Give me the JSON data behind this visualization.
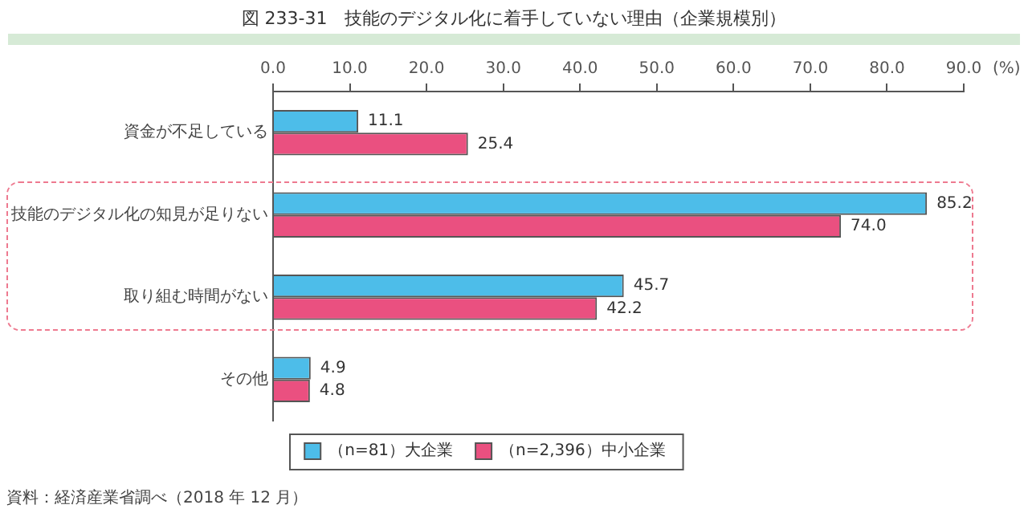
{
  "chart_data": {
    "type": "bar",
    "orientation": "horizontal",
    "title": "図 233-31　技能のデジタル化に着手していない理由（企業規模別）",
    "categories": [
      "資金が不足している",
      "技能のデジタル化の知見が足りない",
      "取り組む時間がない",
      "その他"
    ],
    "series": [
      {
        "name": "（n=81）大企業",
        "color": "#4dbde9",
        "values": [
          11.1,
          85.2,
          45.7,
          4.9
        ],
        "value_labels": [
          "11.1",
          "85.2",
          "45.7",
          "4.9"
        ]
      },
      {
        "name": "（n=2,396）中小企業",
        "color": "#ea5080",
        "values": [
          25.4,
          74.0,
          42.2,
          4.8
        ],
        "value_labels": [
          "25.4",
          "74.0",
          "42.2",
          "4.8"
        ]
      }
    ],
    "xlim": [
      0,
      90
    ],
    "xticks": [
      {
        "value": 0,
        "label": "0.0"
      },
      {
        "value": 10,
        "label": "10.0"
      },
      {
        "value": 20,
        "label": "20.0"
      },
      {
        "value": 30,
        "label": "30.0"
      },
      {
        "value": 40,
        "label": "40.0"
      },
      {
        "value": 50,
        "label": "50.0"
      },
      {
        "value": 60,
        "label": "60.0"
      },
      {
        "value": 70,
        "label": "70.0"
      },
      {
        "value": 80,
        "label": "80.0"
      },
      {
        "value": 90,
        "label": "90.0"
      }
    ],
    "xlabel": "(%)",
    "grid": false,
    "legend": "bottom",
    "annotations": [
      "資料：経済産業省調べ（2018 年 12 月）"
    ]
  }
}
